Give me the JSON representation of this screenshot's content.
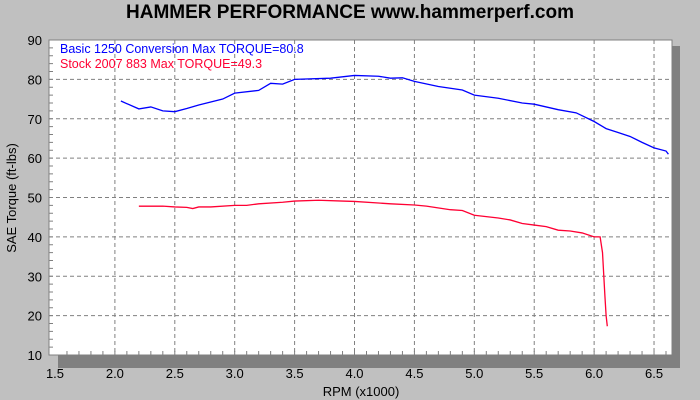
{
  "chart_data": {
    "type": "line",
    "title": "HAMMER PERFORMANCE www.hammerperf.com",
    "xlabel": "RPM (x1000)",
    "ylabel": "SAE Torque (ft-lbs)",
    "xlim": [
      1.45,
      6.65
    ],
    "ylim": [
      10,
      90
    ],
    "xticks": [
      "1.5",
      "2.0",
      "2.5",
      "3.0",
      "3.5",
      "4.0",
      "4.5",
      "5.0",
      "5.5",
      "6.0",
      "6.5"
    ],
    "yticks": [
      "10",
      "20",
      "30",
      "40",
      "50",
      "60",
      "70",
      "80",
      "90"
    ],
    "grid": true,
    "legend_placement": "top-left",
    "series": [
      {
        "name": "Basic 1250 Conversion  Max TORQUE=80.8",
        "color": "#0000ff",
        "x": [
          2.05,
          2.2,
          2.3,
          2.4,
          2.5,
          2.6,
          2.7,
          2.9,
          3.0,
          3.2,
          3.3,
          3.4,
          3.5,
          3.8,
          4.0,
          4.2,
          4.3,
          4.4,
          4.5,
          4.7,
          4.9,
          5.0,
          5.2,
          5.4,
          5.5,
          5.7,
          5.85,
          6.0,
          6.1,
          6.2,
          6.3,
          6.4,
          6.5,
          6.6,
          6.62
        ],
        "y": [
          74.5,
          72.5,
          73,
          72,
          71.8,
          72.6,
          73.5,
          75,
          76.5,
          77.2,
          79,
          78.8,
          80,
          80.3,
          81,
          80.8,
          80.3,
          80.4,
          79.5,
          78.2,
          77.3,
          76,
          75.2,
          74,
          73.7,
          72.3,
          71.5,
          69.3,
          67.5,
          66.5,
          65.5,
          64,
          62.6,
          61.8,
          61
        ]
      },
      {
        "name": "Stock 2007 883  Max TORQUE=49.3",
        "color": "#ff0033",
        "x": [
          2.2,
          2.4,
          2.5,
          2.6,
          2.65,
          2.7,
          2.8,
          3.0,
          3.1,
          3.2,
          3.4,
          3.5,
          3.7,
          3.9,
          4.0,
          4.2,
          4.3,
          4.5,
          4.6,
          4.8,
          4.9,
          5.0,
          5.2,
          5.3,
          5.4,
          5.5,
          5.6,
          5.7,
          5.8,
          5.9,
          6.0,
          6.05,
          6.07,
          6.09,
          6.1,
          6.11
        ],
        "y": [
          47.8,
          47.8,
          47.6,
          47.5,
          47.2,
          47.6,
          47.6,
          48,
          48,
          48.4,
          48.8,
          49.1,
          49.3,
          49.1,
          49,
          48.6,
          48.4,
          48.1,
          47.8,
          46.9,
          46.7,
          45.5,
          44.8,
          44.3,
          43.4,
          43,
          42.6,
          41.7,
          41.5,
          41,
          40,
          40,
          36,
          25,
          20,
          17.3
        ]
      }
    ]
  }
}
